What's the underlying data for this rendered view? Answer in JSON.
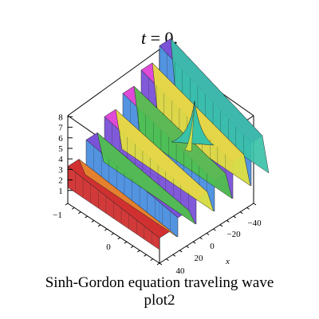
{
  "title": {
    "var": "t",
    "eq": " = 0."
  },
  "caption": {
    "line1": "Sinh-Gordon equation traveling wave",
    "line2": "plot2"
  },
  "chart_data": {
    "type": "surface3d",
    "title": "t = 0.",
    "xlabel": "x",
    "ylabel": "",
    "zlabel": "",
    "x_ticks": [
      "40",
      "20",
      "0",
      "−20",
      "−40"
    ],
    "y_ticks": [
      "−1",
      "0"
    ],
    "z_ticks": [
      "1",
      "2",
      "3",
      "4",
      "5",
      "6",
      "7",
      "8"
    ],
    "zlim": [
      0,
      8
    ],
    "ridges": [
      {
        "peak": 2.0
      },
      {
        "peak": 3.3
      },
      {
        "peak": 4.3
      },
      {
        "peak": 5.3
      },
      {
        "peak": 6.3
      },
      {
        "peak": 7.4
      }
    ],
    "singular_spike": {
      "peak": 8.0
    },
    "colors": {
      "red": "#d03030",
      "orange": "#e88a2e",
      "yellow": "#e6e63a",
      "green": "#4fc448",
      "teal": "#38c2a8",
      "blue": "#4a8fe0",
      "purple": "#7a52d8",
      "magenta": "#e04ad8"
    }
  }
}
